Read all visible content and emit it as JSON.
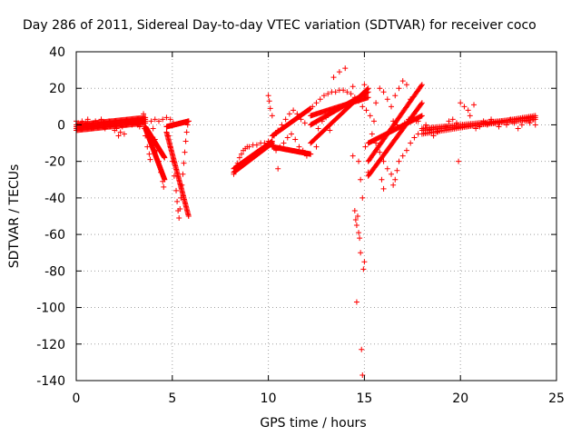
{
  "chart_data": {
    "type": "scatter",
    "title": "Day 286 of 2011, Sidereal Day-to-day VTEC variation (SDTVAR) for receiver coco",
    "xlabel": "GPS time / hours",
    "ylabel": "SDTVAR / TECUs",
    "xlim": [
      0,
      25
    ],
    "ylim": [
      -140,
      40
    ],
    "xticks": [
      0,
      5,
      10,
      15,
      20,
      25
    ],
    "yticks": [
      40,
      20,
      0,
      -20,
      -40,
      -60,
      -80,
      -100,
      -120,
      -140
    ],
    "grid": true,
    "marker": "+",
    "color": "#ff0000",
    "series": [
      {
        "name": "SDTVAR",
        "description_points": "approximate trace estimated from the figure (each point: [hours, TECU])",
        "points": [
          [
            0.0,
            2
          ],
          [
            0.1,
            1
          ],
          [
            0.2,
            0
          ],
          [
            0.3,
            2
          ],
          [
            0.4,
            -1
          ],
          [
            0.5,
            1
          ],
          [
            0.6,
            3
          ],
          [
            0.7,
            0
          ],
          [
            0.8,
            -2
          ],
          [
            0.9,
            1
          ],
          [
            1.0,
            2
          ],
          [
            1.1,
            -1
          ],
          [
            1.2,
            0
          ],
          [
            1.3,
            3
          ],
          [
            1.4,
            1
          ],
          [
            1.5,
            -2
          ],
          [
            1.6,
            0
          ],
          [
            1.7,
            2
          ],
          [
            1.8,
            -1
          ],
          [
            1.9,
            1
          ],
          [
            2.0,
            -3
          ],
          [
            2.1,
            -2
          ],
          [
            2.2,
            -6
          ],
          [
            2.3,
            -4
          ],
          [
            2.4,
            -1
          ],
          [
            2.5,
            -5
          ],
          [
            2.6,
            0
          ],
          [
            2.7,
            1
          ],
          [
            2.8,
            2
          ],
          [
            2.9,
            0
          ],
          [
            3.0,
            1
          ],
          [
            3.1,
            2
          ],
          [
            3.2,
            0
          ],
          [
            3.3,
            -1
          ],
          [
            3.4,
            3
          ],
          [
            3.5,
            6
          ],
          [
            3.55,
            -2
          ],
          [
            3.6,
            -6
          ],
          [
            3.7,
            -12
          ],
          [
            3.8,
            -16
          ],
          [
            3.85,
            -19
          ],
          [
            3.9,
            2
          ],
          [
            4.0,
            -2
          ],
          [
            4.1,
            -8
          ],
          [
            4.2,
            -14
          ],
          [
            4.3,
            -20
          ],
          [
            4.4,
            -26
          ],
          [
            4.5,
            -31
          ],
          [
            4.55,
            -34
          ],
          [
            4.1,
            3
          ],
          [
            4.3,
            2
          ],
          [
            4.5,
            3
          ],
          [
            4.7,
            4
          ],
          [
            4.9,
            3
          ],
          [
            5.05,
            1
          ],
          [
            4.8,
            -6
          ],
          [
            4.9,
            -12
          ],
          [
            5.0,
            -20
          ],
          [
            5.1,
            -28
          ],
          [
            5.2,
            -36
          ],
          [
            5.25,
            -42
          ],
          [
            5.3,
            -47
          ],
          [
            5.35,
            -51
          ],
          [
            5.4,
            -46
          ],
          [
            5.45,
            -40
          ],
          [
            5.5,
            -33
          ],
          [
            5.55,
            -27
          ],
          [
            5.6,
            -21
          ],
          [
            5.65,
            -15
          ],
          [
            5.7,
            -9
          ],
          [
            5.75,
            -4
          ],
          [
            5.8,
            0
          ],
          [
            5.85,
            2
          ],
          [
            8.2,
            -27
          ],
          [
            8.3,
            -24
          ],
          [
            8.4,
            -21
          ],
          [
            8.5,
            -18
          ],
          [
            8.6,
            -16
          ],
          [
            8.7,
            -14
          ],
          [
            8.8,
            -13
          ],
          [
            8.9,
            -12
          ],
          [
            9.0,
            -12
          ],
          [
            9.2,
            -11
          ],
          [
            9.4,
            -11
          ],
          [
            9.6,
            -10
          ],
          [
            9.8,
            -10
          ],
          [
            10.0,
            -9
          ],
          [
            10.0,
            16
          ],
          [
            10.05,
            13
          ],
          [
            10.1,
            9
          ],
          [
            10.2,
            5
          ],
          [
            10.3,
            -6
          ],
          [
            10.5,
            -3
          ],
          [
            10.7,
            0
          ],
          [
            10.9,
            3
          ],
          [
            11.1,
            6
          ],
          [
            11.3,
            8
          ],
          [
            11.5,
            6
          ],
          [
            11.7,
            3
          ],
          [
            11.9,
            1
          ],
          [
            10.4,
            -14
          ],
          [
            10.6,
            -12
          ],
          [
            10.8,
            -10
          ],
          [
            11.0,
            -7
          ],
          [
            11.2,
            -5
          ],
          [
            11.4,
            -8
          ],
          [
            11.6,
            -12
          ],
          [
            11.8,
            -14
          ],
          [
            12.0,
            -17
          ],
          [
            12.2,
            -16
          ],
          [
            12.4,
            -8
          ],
          [
            12.6,
            -2
          ],
          [
            12.8,
            2
          ],
          [
            13.0,
            4
          ],
          [
            10.5,
            -24
          ],
          [
            12.5,
            -12
          ],
          [
            12.1,
            8
          ],
          [
            12.3,
            10
          ],
          [
            12.5,
            12
          ],
          [
            12.7,
            14
          ],
          [
            12.9,
            16
          ],
          [
            13.1,
            17
          ],
          [
            13.3,
            18
          ],
          [
            13.5,
            18
          ],
          [
            13.7,
            19
          ],
          [
            13.9,
            19
          ],
          [
            14.1,
            18
          ],
          [
            14.3,
            17
          ],
          [
            14.5,
            15
          ],
          [
            14.7,
            13
          ],
          [
            14.9,
            10
          ],
          [
            15.1,
            8
          ],
          [
            15.3,
            5
          ],
          [
            15.5,
            2
          ],
          [
            13.4,
            26
          ],
          [
            13.7,
            29
          ],
          [
            14.0,
            31
          ],
          [
            14.4,
            21
          ],
          [
            15.0,
            22
          ],
          [
            13.2,
            -3
          ],
          [
            14.5,
            -47
          ],
          [
            14.55,
            -52
          ],
          [
            14.6,
            -55
          ],
          [
            14.6,
            -97
          ],
          [
            14.65,
            -50
          ],
          [
            14.7,
            -59
          ],
          [
            14.75,
            -62
          ],
          [
            14.8,
            -70
          ],
          [
            14.85,
            -123
          ],
          [
            14.9,
            -137
          ],
          [
            14.95,
            -79
          ],
          [
            14.9,
            -40
          ],
          [
            15.0,
            -75
          ],
          [
            14.8,
            -30
          ],
          [
            14.7,
            -20
          ],
          [
            15.05,
            -12
          ],
          [
            15.2,
            -26
          ],
          [
            14.4,
            -17
          ],
          [
            15.6,
            12
          ],
          [
            15.8,
            20
          ],
          [
            16.0,
            18
          ],
          [
            16.2,
            14
          ],
          [
            16.4,
            10
          ],
          [
            16.6,
            16
          ],
          [
            16.8,
            20
          ],
          [
            17.0,
            24
          ],
          [
            17.2,
            22
          ],
          [
            17.4,
            14
          ],
          [
            17.6,
            6
          ],
          [
            17.8,
            2
          ],
          [
            15.4,
            -5
          ],
          [
            15.6,
            -10
          ],
          [
            15.8,
            -15
          ],
          [
            16.0,
            -20
          ],
          [
            16.2,
            -24
          ],
          [
            16.4,
            -27
          ],
          [
            16.6,
            -30
          ],
          [
            16.7,
            -25
          ],
          [
            16.8,
            -20
          ],
          [
            17.0,
            -17
          ],
          [
            17.2,
            -14
          ],
          [
            17.4,
            -10
          ],
          [
            17.6,
            -7
          ],
          [
            17.8,
            -5
          ],
          [
            16.0,
            -35
          ],
          [
            16.5,
            -33
          ],
          [
            15.9,
            -30
          ],
          [
            16.5,
            2
          ],
          [
            16.7,
            0
          ],
          [
            16.9,
            -1
          ],
          [
            17.1,
            1
          ],
          [
            17.3,
            3
          ],
          [
            17.5,
            4
          ],
          [
            17.7,
            2
          ],
          [
            18.0,
            -2
          ],
          [
            18.2,
            0
          ],
          [
            18.4,
            -3
          ],
          [
            18.6,
            -6
          ],
          [
            18.8,
            -4
          ],
          [
            19.0,
            -2
          ],
          [
            19.2,
            -1
          ],
          [
            19.4,
            2
          ],
          [
            19.6,
            3
          ],
          [
            19.8,
            1
          ],
          [
            19.9,
            -20
          ],
          [
            20.0,
            12
          ],
          [
            20.2,
            10
          ],
          [
            20.4,
            8
          ],
          [
            20.5,
            5
          ],
          [
            20.7,
            11
          ],
          [
            20.8,
            -2
          ],
          [
            21.0,
            -1
          ],
          [
            21.2,
            2
          ],
          [
            21.4,
            0
          ],
          [
            21.6,
            3
          ],
          [
            21.8,
            1
          ],
          [
            22.0,
            -1
          ],
          [
            22.2,
            2
          ],
          [
            22.4,
            0
          ],
          [
            22.6,
            3
          ],
          [
            22.8,
            1
          ],
          [
            23.0,
            -2
          ],
          [
            23.2,
            0
          ],
          [
            23.4,
            2
          ],
          [
            23.6,
            1
          ],
          [
            23.8,
            3
          ],
          [
            23.9,
            0
          ]
        ],
        "bands": [
          {
            "x": [
              0.0,
              3.6
            ],
            "y": [
              [
                0,
                4
              ],
              [
                -3,
                1
              ],
              [
                -2,
                3
              ],
              [
                -1,
                2
              ]
            ]
          },
          {
            "x": [
              3.6,
              4.6
            ],
            "y": [
              [
                -2,
                -30
              ],
              [
                -1,
                -18
              ]
            ]
          },
          {
            "x": [
              4.7,
              5.85
            ],
            "y": [
              [
                -4,
                -50
              ],
              [
                -1,
                2
              ]
            ]
          },
          {
            "x": [
              8.2,
              10.2
            ],
            "y": [
              [
                -26,
                -10
              ],
              [
                -24,
                -9
              ]
            ]
          },
          {
            "x": [
              10.2,
              12.2
            ],
            "y": [
              [
                -12,
                -16
              ],
              [
                -6,
                9
              ]
            ]
          },
          {
            "x": [
              12.2,
              15.2
            ],
            "y": [
              [
                -10,
                20
              ],
              [
                0,
                18
              ],
              [
                5,
                15
              ]
            ]
          },
          {
            "x": [
              15.2,
              18.0
            ],
            "y": [
              [
                -28,
                12
              ],
              [
                -20,
                22
              ],
              [
                -10,
                5
              ]
            ]
          },
          {
            "x": [
              18.0,
              23.9
            ],
            "y": [
              [
                -5,
                5
              ],
              [
                -3,
                3
              ],
              [
                -2,
                4
              ]
            ]
          }
        ]
      }
    ]
  }
}
